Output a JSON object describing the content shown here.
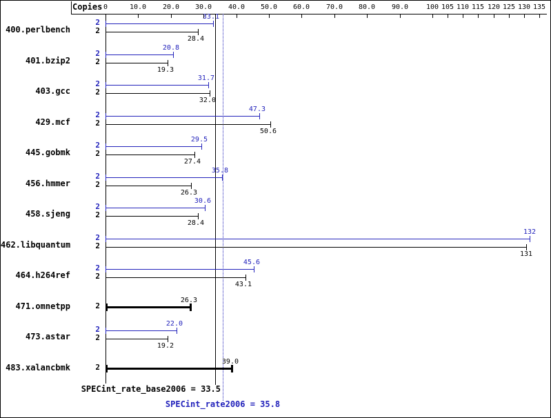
{
  "chart_data": {
    "type": "bar",
    "orientation": "horizontal",
    "copies_header": "Copies",
    "axis": {
      "range": [
        0,
        135
      ],
      "scale_break_at": 100,
      "grid": false,
      "ticks": [
        {
          "value": 0,
          "label": "0"
        },
        {
          "value": 10,
          "label": "10.0"
        },
        {
          "value": 20,
          "label": "20.0"
        },
        {
          "value": 30,
          "label": "30.0"
        },
        {
          "value": 40,
          "label": "40.0"
        },
        {
          "value": 50,
          "label": "50.0"
        },
        {
          "value": 60,
          "label": "60.0"
        },
        {
          "value": 70,
          "label": "70.0"
        },
        {
          "value": 80,
          "label": "80.0"
        },
        {
          "value": 90,
          "label": "90.0"
        },
        {
          "value": 100,
          "label": "100"
        },
        {
          "value": 105,
          "label": "105"
        },
        {
          "value": 110,
          "label": "110"
        },
        {
          "value": 115,
          "label": "115"
        },
        {
          "value": 120,
          "label": "120"
        },
        {
          "value": 125,
          "label": "125"
        },
        {
          "value": 130,
          "label": "130"
        },
        {
          "value": 135,
          "label": "135"
        }
      ]
    },
    "series_colors": {
      "peak": "#2222bb",
      "base": "#000000"
    },
    "benchmarks": [
      {
        "name": "400.perlbench",
        "bars": [
          {
            "series": "peak",
            "copies": 2,
            "value": 33.1,
            "label": "33.1"
          },
          {
            "series": "base",
            "copies": 2,
            "value": 28.4,
            "label": "28.4"
          }
        ]
      },
      {
        "name": "401.bzip2",
        "bars": [
          {
            "series": "peak",
            "copies": 2,
            "value": 20.8,
            "label": "20.8"
          },
          {
            "series": "base",
            "copies": 2,
            "value": 19.3,
            "label": "19.3"
          }
        ]
      },
      {
        "name": "403.gcc",
        "bars": [
          {
            "series": "peak",
            "copies": 2,
            "value": 31.7,
            "label": "31.7"
          },
          {
            "series": "base",
            "copies": 2,
            "value": 32.0,
            "label": "32.0"
          }
        ]
      },
      {
        "name": "429.mcf",
        "bars": [
          {
            "series": "peak",
            "copies": 2,
            "value": 47.3,
            "label": "47.3"
          },
          {
            "series": "base",
            "copies": 2,
            "value": 50.6,
            "label": "50.6"
          }
        ]
      },
      {
        "name": "445.gobmk",
        "bars": [
          {
            "series": "peak",
            "copies": 2,
            "value": 29.5,
            "label": "29.5"
          },
          {
            "series": "base",
            "copies": 2,
            "value": 27.4,
            "label": "27.4"
          }
        ]
      },
      {
        "name": "456.hmmer",
        "bars": [
          {
            "series": "peak",
            "copies": 2,
            "value": 35.8,
            "label": "35.8"
          },
          {
            "series": "base",
            "copies": 2,
            "value": 26.3,
            "label": "26.3"
          }
        ]
      },
      {
        "name": "458.sjeng",
        "bars": [
          {
            "series": "peak",
            "copies": 2,
            "value": 30.6,
            "label": "30.6"
          },
          {
            "series": "base",
            "copies": 2,
            "value": 28.4,
            "label": "28.4"
          }
        ]
      },
      {
        "name": "462.libquantum",
        "bars": [
          {
            "series": "peak",
            "copies": 2,
            "value": 132,
            "label": "132"
          },
          {
            "series": "base",
            "copies": 2,
            "value": 131,
            "label": "131"
          }
        ]
      },
      {
        "name": "464.h264ref",
        "bars": [
          {
            "series": "peak",
            "copies": 2,
            "value": 45.6,
            "label": "45.6"
          },
          {
            "series": "base",
            "copies": 2,
            "value": 43.1,
            "label": "43.1"
          }
        ]
      },
      {
        "name": "471.omnetpp",
        "bars": [
          {
            "series": "base",
            "copies": 2,
            "value": 26.3,
            "label": "26.3",
            "bold": true
          }
        ]
      },
      {
        "name": "473.astar",
        "bars": [
          {
            "series": "peak",
            "copies": 2,
            "value": 22.0,
            "label": "22.0"
          },
          {
            "series": "base",
            "copies": 2,
            "value": 19.2,
            "label": "19.2"
          }
        ]
      },
      {
        "name": "483.xalancbmk",
        "bars": [
          {
            "series": "base",
            "copies": 2,
            "value": 39.0,
            "label": "39.0",
            "bold": true
          }
        ]
      }
    ],
    "summary": {
      "base": {
        "label": "SPECint_rate_base2006 = 33.5",
        "value": 33.5
      },
      "peak": {
        "label": "SPECint_rate2006 = 35.8",
        "value": 35.8
      }
    }
  }
}
